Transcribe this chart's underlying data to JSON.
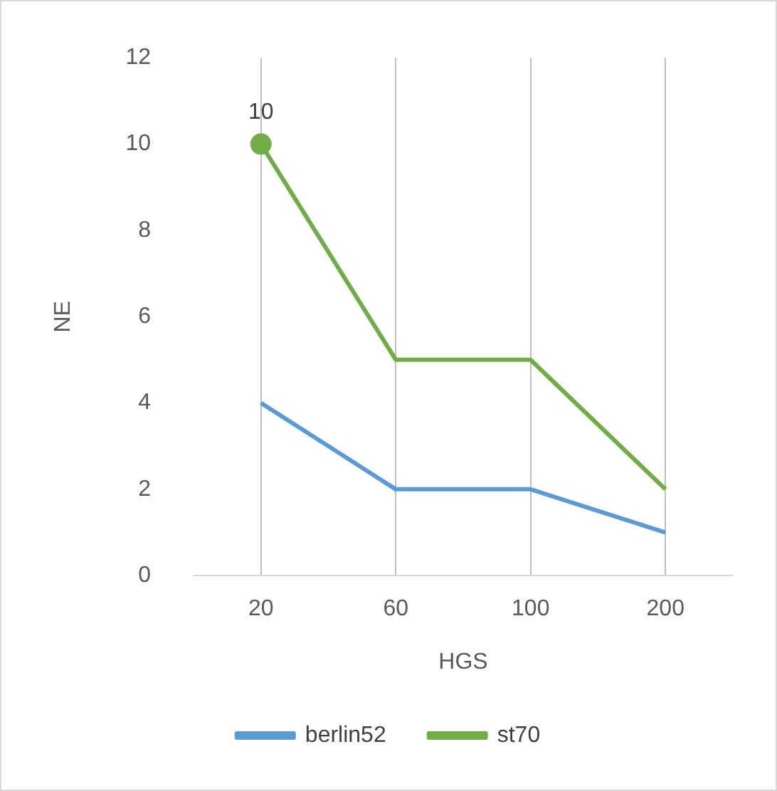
{
  "chart_data": {
    "type": "line",
    "xlabel": "HGS",
    "ylabel": "NE",
    "categories": [
      "20",
      "60",
      "100",
      "200"
    ],
    "series": [
      {
        "name": "berlin52",
        "color": "#5b9bd5",
        "values": [
          4,
          2,
          2,
          1
        ]
      },
      {
        "name": "st70",
        "color": "#70ad47",
        "values": [
          10,
          5,
          5,
          2
        ]
      },
      {
        "type": "scatter",
        "color": "#70ad47",
        "values": [
          10,
          null,
          null,
          null
        ],
        "value_labels": [
          "10",
          null,
          null,
          null
        ],
        "marker": "circle"
      }
    ],
    "ylim": [
      0,
      12
    ],
    "yticks": [
      0,
      2,
      4,
      6,
      8,
      10,
      12
    ],
    "grid": "x",
    "legend": "bottom",
    "line_style": "solid"
  }
}
